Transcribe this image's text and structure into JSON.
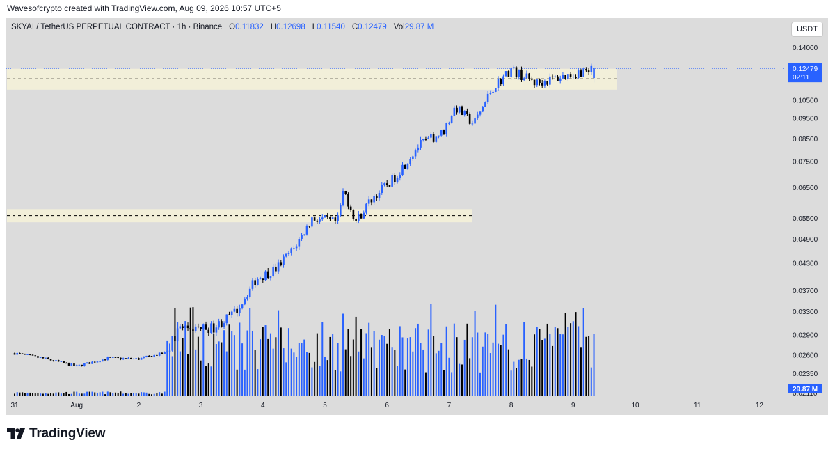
{
  "header": {
    "credit": "Wavesofcrypto created with TradingView.com, Aug 09, 2026 10:57 UTC+5"
  },
  "legend": {
    "symbol": "SKYAI / TetherUS PERPETUAL CONTRACT · 1h · Binance",
    "open_label": "O",
    "open": "0.11832",
    "high_label": "H",
    "high": "0.12698",
    "low_label": "L",
    "low": "0.11540",
    "close_label": "C",
    "close": "0.12479",
    "vol_label": "Vol",
    "vol": "29.87 M"
  },
  "currency_button": "USDT",
  "footer": {
    "brand": "TradingView"
  },
  "colors": {
    "up": "#2962ff",
    "down": "#000000",
    "zone": "#f2efd9",
    "background": "#dcdcdc",
    "last_price_badge": "#2962ff"
  },
  "chart_data": {
    "type": "candlestick",
    "timeframe": "1h",
    "scale": "log",
    "grid": false,
    "y_ticks": [
      "0.14000",
      "0.10500",
      "0.09500",
      "0.08500",
      "0.07500",
      "0.06500",
      "0.05500",
      "0.04900",
      "0.04300",
      "0.03700",
      "0.03300",
      "0.02900",
      "0.02600",
      "0.02350",
      "0.02110"
    ],
    "x_ticks": [
      "31",
      "Aug",
      "2",
      "3",
      "4",
      "5",
      "6",
      "7",
      "8",
      "9",
      "10",
      "11",
      "12"
    ],
    "last_price": {
      "label": "0.12479",
      "countdown": "02:11"
    },
    "volume_badge": "29.87 M",
    "zones": [
      {
        "from_date": "31",
        "to_date": "9",
        "y_low": 0.111,
        "y_high": 0.1245,
        "mid": 0.1178
      },
      {
        "from_date": "31",
        "to_date": "7",
        "y_low": 0.0537,
        "y_high": 0.0577,
        "mid": 0.0557
      }
    ],
    "price_anchors": [
      {
        "day": 0.0,
        "price": 0.0262
      },
      {
        "day": 0.5,
        "price": 0.0254
      },
      {
        "day": 1.0,
        "price": 0.0244
      },
      {
        "day": 1.5,
        "price": 0.0255
      },
      {
        "day": 2.0,
        "price": 0.0254
      },
      {
        "day": 2.45,
        "price": 0.0263
      },
      {
        "day": 2.65,
        "price": 0.0301
      },
      {
        "day": 3.2,
        "price": 0.0301
      },
      {
        "day": 3.55,
        "price": 0.0327
      },
      {
        "day": 3.9,
        "price": 0.0395
      },
      {
        "day": 4.2,
        "price": 0.0415
      },
      {
        "day": 4.5,
        "price": 0.0465
      },
      {
        "day": 4.8,
        "price": 0.055
      },
      {
        "day": 5.2,
        "price": 0.0535
      },
      {
        "day": 5.3,
        "price": 0.064
      },
      {
        "day": 5.5,
        "price": 0.054
      },
      {
        "day": 5.75,
        "price": 0.061
      },
      {
        "day": 6.1,
        "price": 0.068
      },
      {
        "day": 6.5,
        "price": 0.0815
      },
      {
        "day": 6.9,
        "price": 0.088
      },
      {
        "day": 7.1,
        "price": 0.101
      },
      {
        "day": 7.4,
        "price": 0.092
      },
      {
        "day": 7.7,
        "price": 0.112
      },
      {
        "day": 8.0,
        "price": 0.124
      },
      {
        "day": 8.4,
        "price": 0.115
      },
      {
        "day": 8.9,
        "price": 0.12
      },
      {
        "day": 9.35,
        "price": 0.1248
      }
    ]
  }
}
